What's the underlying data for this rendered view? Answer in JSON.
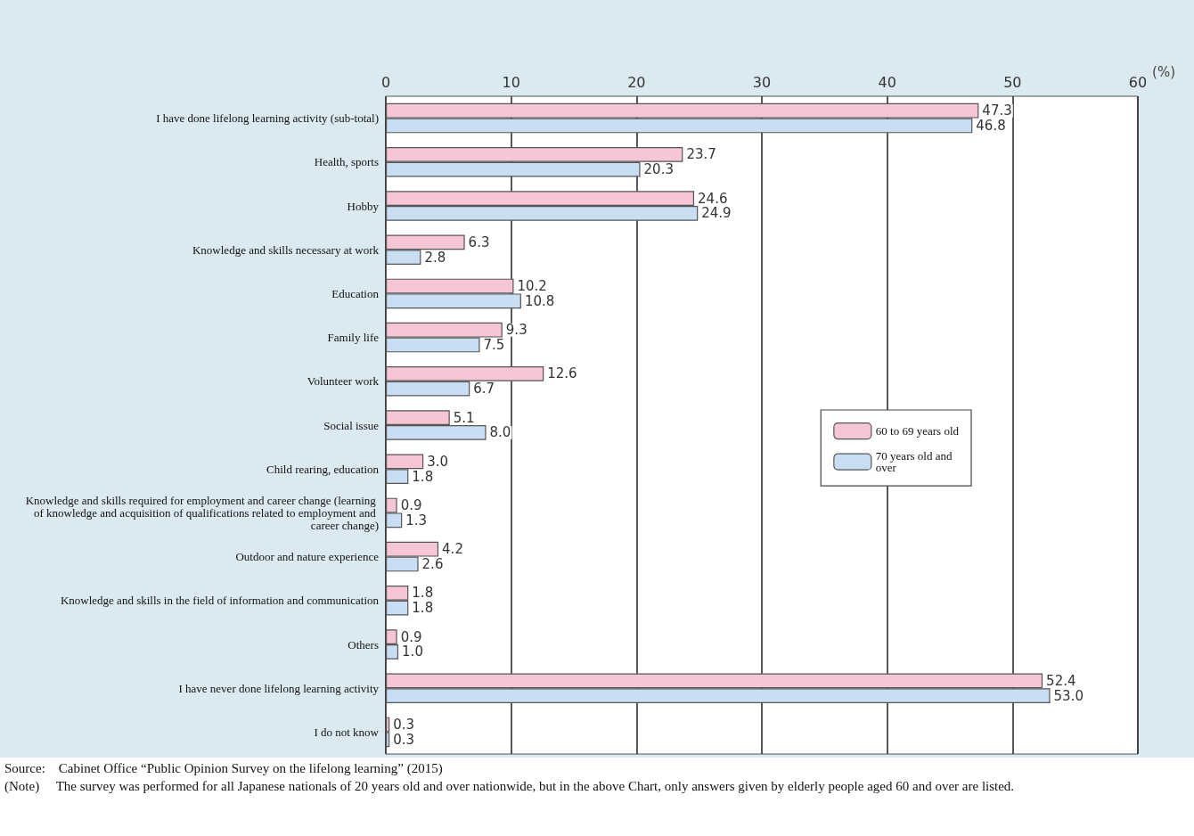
{
  "chart_data": {
    "type": "bar",
    "orientation": "horizontal",
    "xlabel": "(%)",
    "categories": [
      "I have done lifelong learning activity (sub-total)",
      "Health, sports",
      "Hobby",
      "Knowledge and skills necessary at work",
      "Education",
      "Family life",
      "Volunteer work",
      "Social issue",
      "Child rearing, education",
      "Knowledge and skills required for employment and career change (learning of knowledge and acquisition of qualifications related to employment and career change)",
      "Outdoor and nature experience",
      "Knowledge and skills in the field of information and communication",
      "Others",
      "I have never done lifelong learning activity",
      "I do not know"
    ],
    "series": [
      {
        "name": "60 to 69 years old",
        "color": "#f7c6d6",
        "values": [
          47.3,
          23.7,
          24.6,
          6.3,
          10.2,
          9.3,
          12.6,
          5.1,
          3.0,
          0.9,
          4.2,
          1.8,
          0.9,
          52.4,
          0.3
        ],
        "value_labels": [
          "47.3",
          "23.7",
          "24.6",
          "6.3",
          "10.2",
          "9.3",
          "12.6",
          "5.1",
          "3.0",
          "0.9",
          "4.2",
          "1.8",
          "0.9",
          "52.4",
          "0.3"
        ]
      },
      {
        "name": "70 years old and over",
        "color": "#c9def2",
        "values": [
          46.8,
          20.3,
          24.9,
          2.8,
          10.8,
          7.5,
          6.7,
          8.0,
          1.8,
          1.3,
          2.6,
          1.8,
          1.0,
          53.0,
          0.3
        ],
        "value_labels": [
          "46.8",
          "20.3",
          "24.9",
          "2.8",
          "10.8",
          "7.5",
          "6.7",
          "8.0",
          "1.8",
          "1.3",
          "2.6",
          "1.8",
          "1.0",
          "53.0",
          "0.3"
        ]
      }
    ],
    "xlim": [
      0,
      60
    ],
    "xticks": [
      0,
      10,
      20,
      30,
      40,
      50,
      60
    ],
    "grid": "x",
    "legend": "right",
    "annotations": [
      "Source:    Cabinet Office “Public Opinion Survey on the lifelong learning” (2015)",
      "(Note)     The survey was performed for all Japanese nationals of 20 years old and over nationwide, but in the above Chart, only answers given by elderly people aged 60 and over are listed."
    ]
  }
}
